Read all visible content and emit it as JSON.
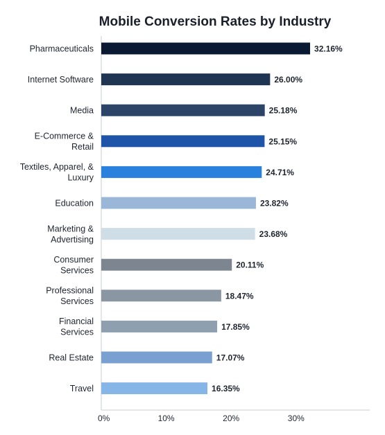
{
  "chart_data": {
    "type": "bar",
    "orientation": "horizontal",
    "title": "Mobile Conversion Rates by Industry",
    "categories": [
      "Pharmaceuticals",
      "Internet Software",
      "Media",
      "E-Commerce & Retail",
      "Textiles, Apparel, & Luxury",
      "Education",
      "Marketing & Advertising",
      "Consumer Services",
      "Professional Services",
      "Financial Services",
      "Real Estate",
      "Travel"
    ],
    "category_lines": [
      [
        "Pharmaceuticals"
      ],
      [
        "Internet Software"
      ],
      [
        "Media"
      ],
      [
        "E-Commerce &",
        "Retail"
      ],
      [
        "Textiles, Apparel, &",
        "Luxury"
      ],
      [
        "Education"
      ],
      [
        "Marketing &",
        "Advertising"
      ],
      [
        "Consumer",
        "Services"
      ],
      [
        "Professional",
        "Services"
      ],
      [
        "Financial",
        "Services"
      ],
      [
        "Real Estate"
      ],
      [
        "Travel"
      ]
    ],
    "values": [
      32.16,
      26.0,
      25.18,
      25.15,
      24.71,
      23.82,
      23.68,
      20.11,
      18.47,
      17.85,
      17.07,
      16.35
    ],
    "value_labels": [
      "32.16%",
      "26.00%",
      "25.18%",
      "25.15%",
      "24.71%",
      "23.82%",
      "23.68%",
      "20.11%",
      "18.47%",
      "17.85%",
      "17.07%",
      "16.35%"
    ],
    "bar_colors": [
      "#0b1a33",
      "#1f3552",
      "#2c4468",
      "#1e55a8",
      "#2a80dd",
      "#9ab7d8",
      "#cfdde6",
      "#7c8590",
      "#8a96a2",
      "#8e9fb0",
      "#7aa0d2",
      "#86b6e8"
    ],
    "xlim": [
      0,
      40
    ],
    "xticks": [
      0,
      10,
      20,
      30
    ],
    "xtick_labels": [
      "0%",
      "10%",
      "20%",
      "30%"
    ],
    "xlabel": "",
    "ylabel": "",
    "grid": false,
    "legend": "none"
  }
}
